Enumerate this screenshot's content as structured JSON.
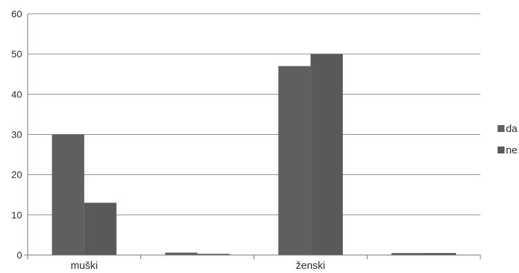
{
  "chart_data": {
    "type": "bar",
    "categories": [
      "muški",
      "",
      "ženski",
      ""
    ],
    "series": [
      {
        "name": "da",
        "values": [
          30,
          0.6,
          47,
          0.5
        ],
        "color": "#5f5f5f"
      },
      {
        "name": "ne",
        "values": [
          13,
          0.3,
          50,
          0.5
        ],
        "color": "#595959"
      }
    ],
    "y_ticks": [
      0,
      10,
      20,
      30,
      40,
      50,
      60
    ],
    "ylim": [
      0,
      60
    ],
    "grid": true,
    "legend_position": "right",
    "title": "",
    "xlabel": "",
    "ylabel": ""
  }
}
